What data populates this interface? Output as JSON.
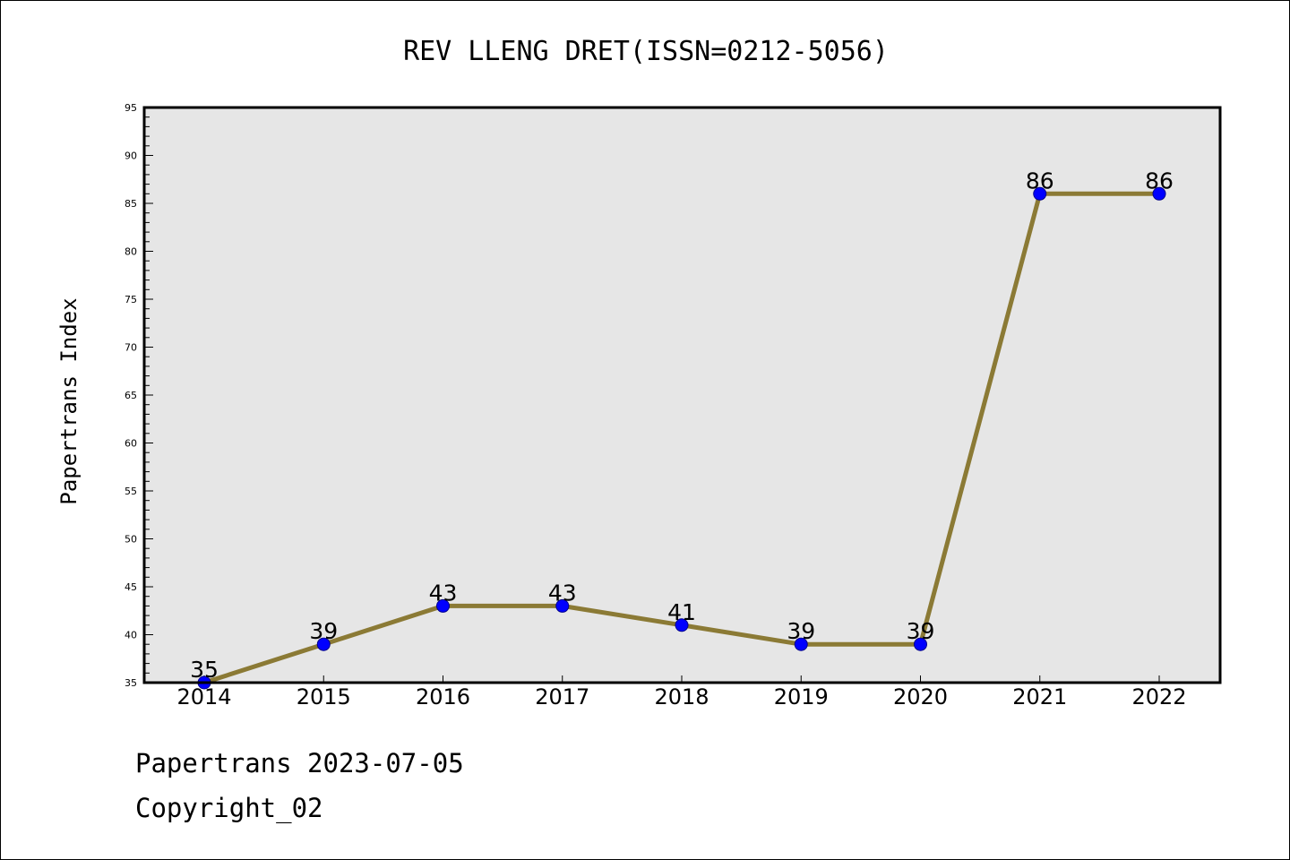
{
  "chart_data": {
    "type": "line",
    "title": "REV LLENG DRET(ISSN=0212-5056)",
    "xlabel": "",
    "ylabel": "Papertrans Index",
    "categories": [
      "2014",
      "2015",
      "2016",
      "2017",
      "2018",
      "2019",
      "2020",
      "2021",
      "2022"
    ],
    "values": [
      35,
      39,
      43,
      43,
      41,
      39,
      39,
      86,
      86
    ],
    "ylim": [
      35,
      95
    ],
    "yticks": [
      35,
      40,
      45,
      50,
      55,
      60,
      65,
      70,
      75,
      80,
      85,
      90,
      95
    ],
    "ytick_minor_step": 1,
    "grid": false,
    "data_labels": true,
    "colors": {
      "line": "#8b7a35",
      "marker": "#0000ff",
      "plot_bg": "#e6e6e6"
    }
  },
  "footer": {
    "date_text": "Papertrans 2023-07-05",
    "copyright_text": "Copyright_02"
  }
}
